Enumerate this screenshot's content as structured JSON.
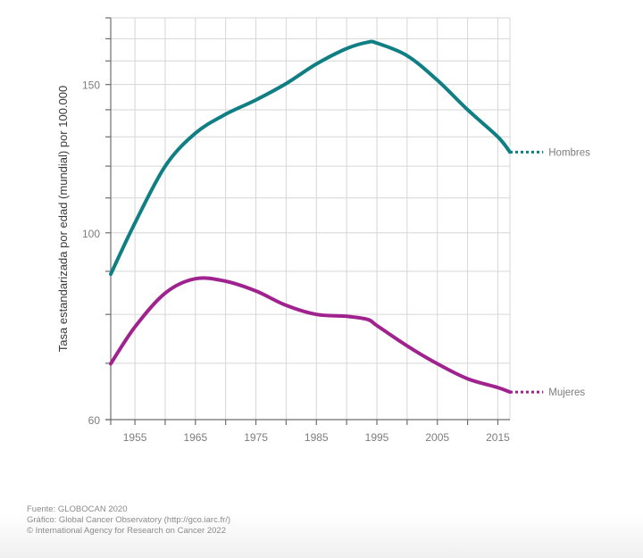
{
  "chart_data": {
    "type": "line",
    "title": "",
    "xlabel": "",
    "ylabel": "Tasa estandarizada por edad (mundial) por 100.000",
    "yscale": "log",
    "ylim": [
      60,
      180
    ],
    "xlim": [
      1951,
      2017
    ],
    "grid": true,
    "x_ticks": [
      1955,
      1960,
      1965,
      1970,
      1975,
      1980,
      1985,
      1990,
      1995,
      2000,
      2005,
      2010,
      2015
    ],
    "x_tick_labels": [
      "1955",
      "",
      "1965",
      "",
      "1975",
      "",
      "1985",
      "",
      "1995",
      "",
      "2005",
      "",
      "2015"
    ],
    "y_gridlines": [
      60,
      70,
      80,
      90,
      100,
      110,
      120,
      130,
      140,
      150,
      160,
      170,
      180
    ],
    "y_tick_labels": [
      {
        "value": 60,
        "label": "60"
      },
      {
        "value": 100,
        "label": "100"
      },
      {
        "value": 150,
        "label": "150"
      }
    ],
    "x": [
      1951,
      1955,
      1960,
      1965,
      1970,
      1975,
      1980,
      1985,
      1990,
      1993.5,
      1995,
      2000,
      2005,
      2010,
      2015,
      2017
    ],
    "series": [
      {
        "name": "Hombres",
        "color": "#0f7f84",
        "values": [
          89.3,
          102.7,
          120.0,
          131.3,
          138.3,
          143.8,
          150.4,
          158.7,
          165.5,
          168.4,
          168.0,
          162.3,
          151.8,
          140.0,
          130.0,
          124.7
        ],
        "extension_dotted_to": 2022.5
      },
      {
        "name": "Mujeres",
        "color": "#a0228f",
        "values": [
          69.9,
          77.3,
          84.8,
          88.2,
          87.6,
          85.3,
          82.0,
          80.0,
          79.6,
          78.9,
          77.6,
          73.4,
          69.9,
          67.1,
          65.5,
          64.7
        ],
        "extension_dotted_to": 2022.5
      }
    ],
    "legend": "inline-right"
  },
  "footer": {
    "source": "Fuente: GLOBOCAN 2020",
    "graphic": "Gráfico: Global Cancer Observatory (http://gco.iarc.fr/)",
    "copyright": "© International Agency for Research on Cancer 2022"
  }
}
